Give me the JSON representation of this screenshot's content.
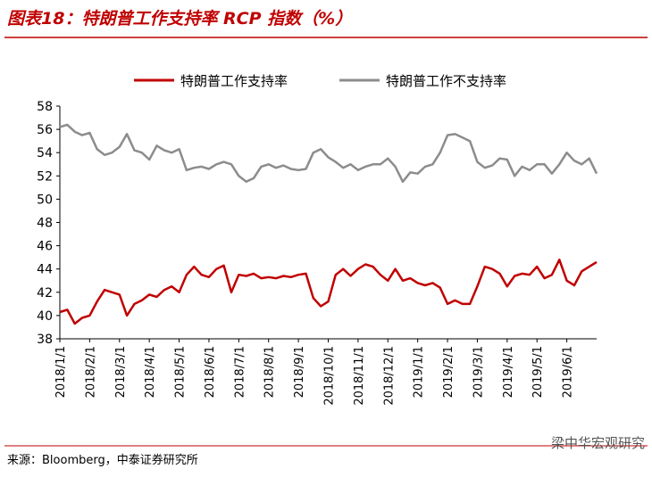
{
  "chart_data": {
    "type": "line",
    "title": "图表18：特朗普工作支持率 RCP 指数（%）",
    "source": "来源：Bloomberg，中泰证券研究所",
    "watermark": "梁中华宏观研究",
    "categories": [
      "2018/1/1",
      null,
      null,
      null,
      "2018/2/1",
      null,
      null,
      null,
      "2018/3/1",
      null,
      null,
      null,
      "2018/4/1",
      null,
      null,
      null,
      "2018/5/1",
      null,
      null,
      null,
      "2018/6/1",
      null,
      null,
      null,
      "2018/7/1",
      null,
      null,
      null,
      "2018/8/1",
      null,
      null,
      null,
      "2018/9/1",
      null,
      null,
      null,
      "2018/10/1",
      null,
      null,
      null,
      "2018/11/1",
      null,
      null,
      null,
      "2018/12/1",
      null,
      null,
      null,
      "2019/1/1",
      null,
      null,
      null,
      "2019/2/1",
      null,
      null,
      null,
      "2019/3/1",
      null,
      null,
      null,
      "2019/4/1",
      null,
      null,
      null,
      "2019/5/1",
      null,
      null,
      null,
      "2019/6/1",
      null,
      null,
      null,
      null
    ],
    "series": [
      {
        "name": "特朗普工作支持率",
        "color": "#c00000",
        "values": [
          40.3,
          40.5,
          39.3,
          39.8,
          40.0,
          41.2,
          42.2,
          42.0,
          41.8,
          40.0,
          41.0,
          41.3,
          41.8,
          41.6,
          42.2,
          42.5,
          42.0,
          43.5,
          44.2,
          43.5,
          43.3,
          44.0,
          44.3,
          42.0,
          43.5,
          43.4,
          43.6,
          43.2,
          43.3,
          43.2,
          43.4,
          43.3,
          43.5,
          43.6,
          41.5,
          40.8,
          41.2,
          43.5,
          44.0,
          43.4,
          44.0,
          44.4,
          44.2,
          43.5,
          43.0,
          44.0,
          43.0,
          43.2,
          42.8,
          42.6,
          42.8,
          42.4,
          41.0,
          41.3,
          41.0,
          41.0,
          42.5,
          44.2,
          44.0,
          43.6,
          42.5,
          43.4,
          43.6,
          43.5,
          44.2,
          43.2,
          43.5,
          44.8,
          43.0,
          42.6,
          43.8,
          44.2,
          44.6
        ]
      },
      {
        "name": "特朗普工作不支持率",
        "color": "#8c8c8c",
        "values": [
          56.2,
          56.4,
          55.8,
          55.5,
          55.7,
          54.3,
          53.8,
          54.0,
          54.5,
          55.6,
          54.2,
          54.0,
          53.4,
          54.6,
          54.2,
          54.0,
          54.3,
          52.5,
          52.7,
          52.8,
          52.6,
          53.0,
          53.2,
          53.0,
          52.0,
          51.5,
          51.8,
          52.8,
          53.0,
          52.7,
          52.9,
          52.6,
          52.5,
          52.6,
          54.0,
          54.3,
          53.6,
          53.2,
          52.7,
          53.0,
          52.5,
          52.8,
          53.0,
          53.0,
          53.5,
          52.8,
          51.5,
          52.3,
          52.2,
          52.8,
          53.0,
          54.0,
          55.5,
          55.6,
          55.3,
          55.0,
          53.2,
          52.7,
          52.9,
          53.5,
          53.4,
          52.0,
          52.8,
          52.5,
          53.0,
          53.0,
          52.2,
          53.0,
          54.0,
          53.3,
          53.0,
          53.5,
          52.2
        ]
      }
    ],
    "ylim": [
      38,
      58
    ],
    "yticks": [
      38,
      40,
      42,
      44,
      46,
      48,
      50,
      52,
      54,
      56,
      58
    ],
    "legend": "top",
    "grid": false
  }
}
